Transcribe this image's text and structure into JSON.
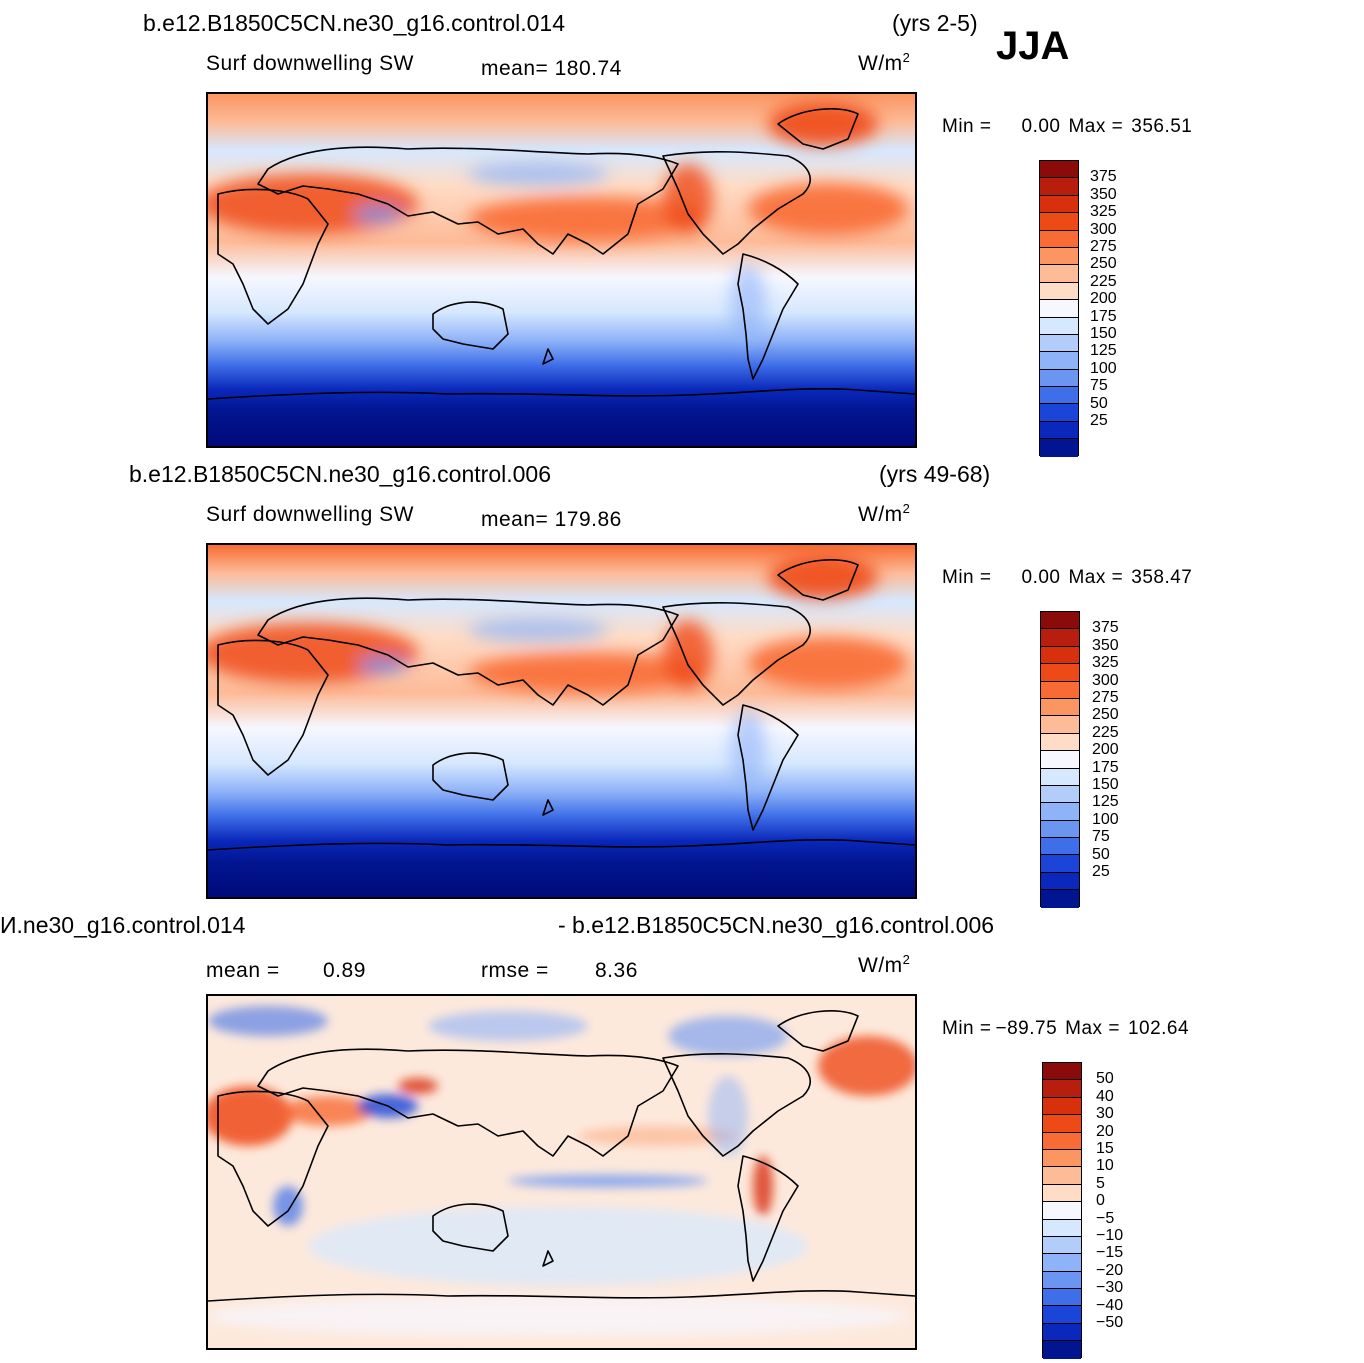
{
  "season": "JJA",
  "panels": [
    {
      "case": "b.e12.B1850C5CN.ne30_g16.control.014",
      "years": "(yrs 2-5)",
      "variable": "Surf  downwelling  SW",
      "stat1": "mean=  180.74",
      "stat2": "",
      "units": "W/m",
      "units_sup": "2",
      "min_label": "Min  =",
      "min_value": "0.00",
      "max_label": "Max  =",
      "max_value": "356.51",
      "colorbar": {
        "labels": [
          "375",
          "350",
          "325",
          "300",
          "275",
          "250",
          "225",
          "200",
          "175",
          "150",
          "125",
          "100",
          "75",
          "50",
          "25"
        ],
        "colors": [
          "#8b0a0a",
          "#b81e0e",
          "#d8300c",
          "#ee4a18",
          "#f86b34",
          "#fb9562",
          "#fdbb98",
          "#fedcc6",
          "#f6f7ff",
          "#d6e8fe",
          "#b3cdfb",
          "#8fb3f8",
          "#6a96f2",
          "#3f6fe8",
          "#1a45d8",
          "#0a28bb",
          "#021591"
        ]
      }
    },
    {
      "case": "b.e12.B1850C5CN.ne30_g16.control.006",
      "years": "(yrs 49-68)",
      "variable": "Surf  downwelling  SW",
      "stat1": "mean=  179.86",
      "stat2": "",
      "units": "W/m",
      "units_sup": "2",
      "min_label": "Min  =",
      "min_value": "0.00",
      "max_label": "Max  =",
      "max_value": "358.47",
      "colorbar": {
        "labels": [
          "375",
          "350",
          "325",
          "300",
          "275",
          "250",
          "225",
          "200",
          "175",
          "150",
          "125",
          "100",
          "75",
          "50",
          "25"
        ],
        "colors": [
          "#8b0a0a",
          "#b81e0e",
          "#d8300c",
          "#ee4a18",
          "#f86b34",
          "#fb9562",
          "#fdbb98",
          "#fedcc6",
          "#f6f7ff",
          "#d6e8fe",
          "#b3cdfb",
          "#8fb3f8",
          "#6a96f2",
          "#3f6fe8",
          "#1a45d8",
          "#0a28bb",
          "#021591"
        ]
      }
    },
    {
      "case": "И.ne30_g16.control.014",
      "years": "- b.e12.B1850C5CN.ne30_g16.control.006",
      "variable": "mean  =",
      "stat0": "0.89",
      "stat1": "rmse  =",
      "stat2": "8.36",
      "units": "W/m",
      "units_sup": "2",
      "min_label": "Min  =",
      "min_value": "−89.75",
      "max_label": "Max  =",
      "max_value": "102.64",
      "colorbar": {
        "labels": [
          "50",
          "40",
          "30",
          "20",
          "15",
          "10",
          "5",
          "0",
          "−5",
          "−10",
          "−15",
          "−20",
          "−30",
          "−40",
          "−50"
        ],
        "colors": [
          "#8b0a0a",
          "#b81e0e",
          "#d8300c",
          "#ee4a18",
          "#f86b34",
          "#fb9562",
          "#fdbb98",
          "#fedcc6",
          "#f6f7ff",
          "#d6e8fe",
          "#b3cdfb",
          "#8fb3f8",
          "#6a96f2",
          "#3f6fe8",
          "#1a45d8",
          "#0a28bb",
          "#021591"
        ]
      }
    }
  ]
}
